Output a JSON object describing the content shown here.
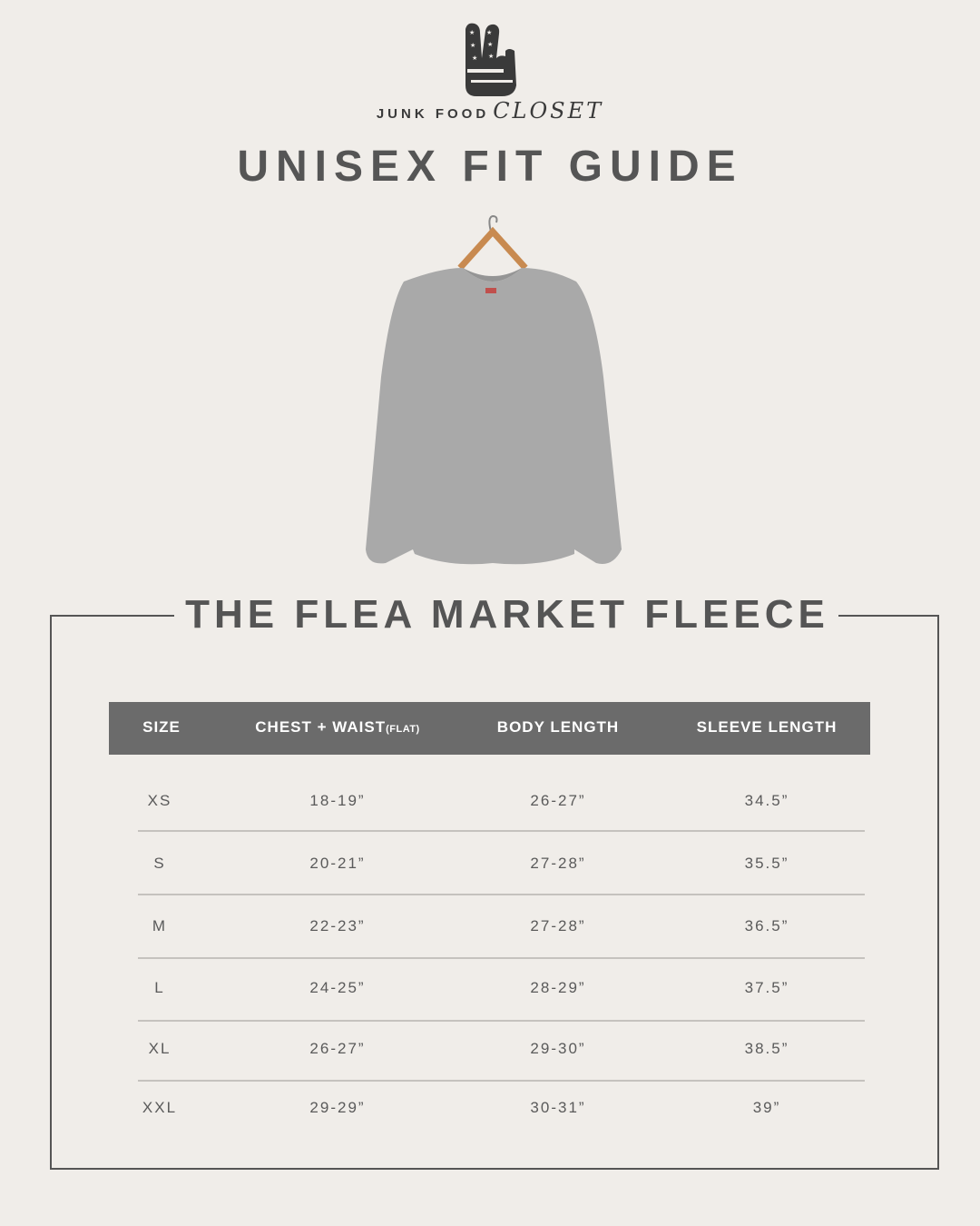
{
  "brand": {
    "name_part1": "JUNK FOOD",
    "name_part2": "CLOSET"
  },
  "title": "UNISEX FIT GUIDE",
  "product": "THE FLEA MARKET FLEECE",
  "colors": {
    "background": "#f0ede9",
    "header": "#6b6b6b",
    "text": "#555555",
    "garment": "#a9a9a9"
  },
  "table": {
    "headers": [
      "SIZE",
      "CHEST + WAIST",
      "BODY LENGTH",
      "SLEEVE LENGTH"
    ],
    "header_suffix": "(FLAT)",
    "rows": [
      [
        "XS",
        "18-19”",
        "26-27”",
        "34.5”"
      ],
      [
        "S",
        "20-21”",
        "27-28”",
        "35.5”"
      ],
      [
        "M",
        "22-23”",
        "27-28”",
        "36.5”"
      ],
      [
        "L",
        "24-25”",
        "28-29”",
        "37.5”"
      ],
      [
        "XL",
        "26-27”",
        "29-30”",
        "38.5”"
      ],
      [
        "XXL",
        "29-29”",
        "30-31”",
        "39”"
      ]
    ]
  }
}
